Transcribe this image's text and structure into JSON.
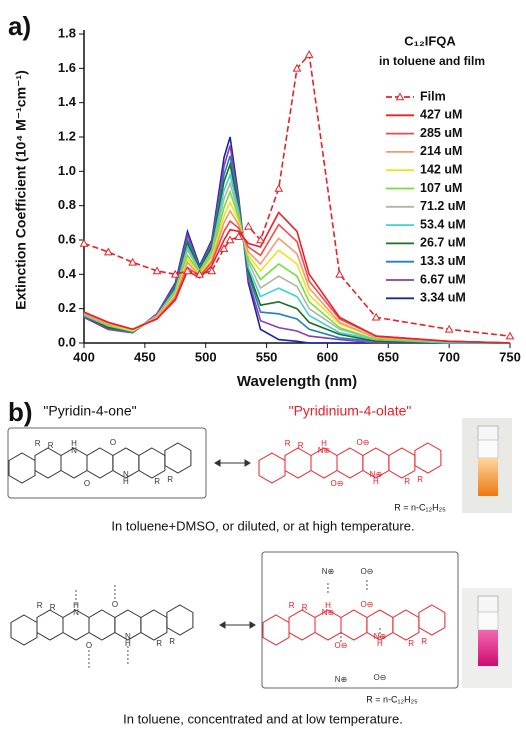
{
  "chart_data": {
    "type": "line",
    "panel_label": "a)",
    "legend_title": [
      "C₁₂IFQA",
      "in toluene and film"
    ],
    "x_label": "Wavelength (nm)",
    "y_label": "Extinction Coefficient (10⁴ M⁻¹cm⁻¹)",
    "x": [
      400,
      420,
      440,
      460,
      475,
      485,
      495,
      505,
      515,
      520,
      527,
      535,
      545,
      560,
      575,
      585,
      610,
      640,
      700,
      750
    ],
    "xlim": [
      400,
      750
    ],
    "xticks": [
      400,
      450,
      500,
      550,
      600,
      650,
      700,
      750
    ],
    "ylim": [
      0,
      1.8
    ],
    "yticks": [
      {
        "value": 0,
        "label": "0.0"
      },
      0.2,
      0.4,
      0.6,
      0.8,
      {
        "value": 1,
        "label": "1.0"
      },
      1.2,
      1.4,
      1.6,
      1.8
    ],
    "series": [
      {
        "name": "Film",
        "color": "#e0242a",
        "line_style": "dashed",
        "marker": "triangle",
        "values": [
          0.58,
          0.53,
          0.47,
          0.42,
          0.4,
          0.42,
          0.4,
          0.42,
          0.55,
          0.6,
          0.62,
          0.68,
          0.6,
          0.9,
          1.6,
          1.68,
          0.4,
          0.15,
          0.08,
          0.04
        ]
      },
      {
        "name": "427 uM",
        "color": "#e8202a",
        "values": [
          0.18,
          0.12,
          0.08,
          0.14,
          0.25,
          0.42,
          0.38,
          0.45,
          0.6,
          0.66,
          0.65,
          0.58,
          0.56,
          0.76,
          0.65,
          0.4,
          0.15,
          0.04,
          0.01,
          0
        ]
      },
      {
        "name": "285 uM",
        "color": "#f24a4a",
        "values": [
          0.18,
          0.12,
          0.08,
          0.14,
          0.26,
          0.44,
          0.39,
          0.47,
          0.65,
          0.71,
          0.67,
          0.56,
          0.51,
          0.69,
          0.59,
          0.36,
          0.14,
          0.04,
          0.01,
          0
        ]
      },
      {
        "name": "214 uM",
        "color": "#f39a72",
        "values": [
          0.17,
          0.11,
          0.08,
          0.15,
          0.27,
          0.47,
          0.39,
          0.48,
          0.7,
          0.77,
          0.69,
          0.53,
          0.46,
          0.61,
          0.52,
          0.32,
          0.12,
          0.03,
          0.01,
          0
        ]
      },
      {
        "name": "142 uM",
        "color": "#efe21e",
        "values": [
          0.17,
          0.11,
          0.07,
          0.15,
          0.28,
          0.49,
          0.4,
          0.5,
          0.74,
          0.82,
          0.71,
          0.51,
          0.42,
          0.54,
          0.46,
          0.28,
          0.11,
          0.03,
          0.01,
          0
        ]
      },
      {
        "name": "107 uM",
        "color": "#6ee23c",
        "values": [
          0.17,
          0.1,
          0.07,
          0.15,
          0.29,
          0.51,
          0.41,
          0.51,
          0.79,
          0.88,
          0.73,
          0.49,
          0.37,
          0.46,
          0.39,
          0.24,
          0.09,
          0.02,
          0.01,
          0
        ]
      },
      {
        "name": "71.2 uM",
        "color": "#b4b4a4",
        "values": [
          0.17,
          0.1,
          0.07,
          0.16,
          0.3,
          0.54,
          0.42,
          0.53,
          0.84,
          0.93,
          0.75,
          0.47,
          0.32,
          0.39,
          0.33,
          0.2,
          0.08,
          0.02,
          0.01,
          0
        ]
      },
      {
        "name": "53.4 uM",
        "color": "#3fd2d2",
        "values": [
          0.16,
          0.1,
          0.07,
          0.16,
          0.31,
          0.56,
          0.42,
          0.54,
          0.89,
          0.98,
          0.77,
          0.44,
          0.27,
          0.32,
          0.27,
          0.16,
          0.06,
          0.02,
          0,
          0
        ]
      },
      {
        "name": "26.7 uM",
        "color": "#1f6e22",
        "values": [
          0.16,
          0.09,
          0.07,
          0.16,
          0.32,
          0.58,
          0.43,
          0.56,
          0.94,
          1.04,
          0.79,
          0.42,
          0.22,
          0.24,
          0.2,
          0.12,
          0.05,
          0.01,
          0,
          0
        ]
      },
      {
        "name": "13.3 uM",
        "color": "#1f80c0",
        "values": [
          0.16,
          0.09,
          0.06,
          0.16,
          0.33,
          0.6,
          0.44,
          0.57,
          0.98,
          1.09,
          0.81,
          0.4,
          0.18,
          0.17,
          0.14,
          0.08,
          0.03,
          0.01,
          0,
          0
        ]
      },
      {
        "name": "6.67 uM",
        "color": "#8a3ea6",
        "values": [
          0.15,
          0.08,
          0.06,
          0.17,
          0.34,
          0.63,
          0.44,
          0.59,
          1.03,
          1.15,
          0.83,
          0.37,
          0.13,
          0.09,
          0.07,
          0.04,
          0.02,
          0,
          0,
          0
        ]
      },
      {
        "name": "3.34 uM",
        "color": "#1a24a6",
        "values": [
          0.15,
          0.08,
          0.06,
          0.17,
          0.35,
          0.65,
          0.45,
          0.6,
          1.08,
          1.2,
          0.85,
          0.35,
          0.08,
          0.02,
          0.01,
          0,
          0,
          0,
          0,
          0
        ]
      }
    ]
  },
  "diagram": {
    "panel_label": "b)",
    "atoms": [
      "R",
      "O",
      "N",
      "H",
      "N⊕",
      "O⊖"
    ],
    "top": {
      "left_label": "\"Pyridin-4-one\"",
      "right_label": "\"Pyridinium-4-olate\"",
      "r_note": "R = n-C₁₂H₂₅",
      "caption": "In toluene+DMSO, or diluted, or at high temperature."
    },
    "bottom": {
      "r_note": "R = n-C₁₂H₂₅",
      "caption": "In toluene, concentrated and at low temperature."
    }
  }
}
